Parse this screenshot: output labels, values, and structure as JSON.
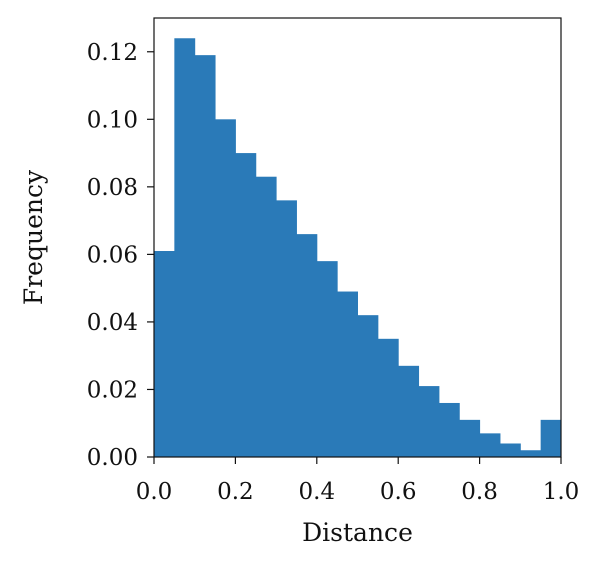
{
  "chart_data": {
    "type": "bar",
    "xlabel": "Distance",
    "ylabel": "Frequency",
    "xlim": [
      0.0,
      1.0
    ],
    "ylim": [
      0.0,
      0.13
    ],
    "x_ticks": [
      "0.0",
      "0.2",
      "0.4",
      "0.6",
      "0.8",
      "1.0"
    ],
    "y_ticks": [
      "0.00",
      "0.02",
      "0.04",
      "0.06",
      "0.08",
      "0.10",
      "0.12"
    ],
    "bin_width": 0.05,
    "x": [
      0.0,
      0.05,
      0.1,
      0.15,
      0.2,
      0.25,
      0.3,
      0.35,
      0.4,
      0.45,
      0.5,
      0.55,
      0.6,
      0.65,
      0.7,
      0.75,
      0.8,
      0.85,
      0.9,
      0.95
    ],
    "values": [
      0.061,
      0.124,
      0.119,
      0.1,
      0.09,
      0.083,
      0.076,
      0.066,
      0.058,
      0.049,
      0.042,
      0.035,
      0.027,
      0.021,
      0.016,
      0.011,
      0.007,
      0.004,
      0.002,
      0.011
    ],
    "bar_color": "#2a7ab8",
    "grid": false,
    "legend": "none"
  }
}
